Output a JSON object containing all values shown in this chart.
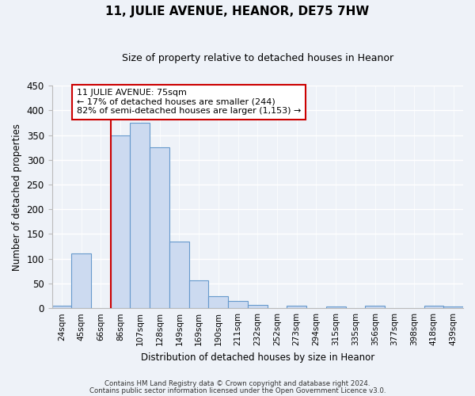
{
  "title": "11, JULIE AVENUE, HEANOR, DE75 7HW",
  "subtitle": "Size of property relative to detached houses in Heanor",
  "xlabel": "Distribution of detached houses by size in Heanor",
  "ylabel": "Number of detached properties",
  "bar_labels": [
    "24sqm",
    "45sqm",
    "66sqm",
    "86sqm",
    "107sqm",
    "128sqm",
    "149sqm",
    "169sqm",
    "190sqm",
    "211sqm",
    "232sqm",
    "252sqm",
    "273sqm",
    "294sqm",
    "315sqm",
    "335sqm",
    "356sqm",
    "377sqm",
    "398sqm",
    "418sqm",
    "439sqm"
  ],
  "bar_values": [
    5,
    110,
    0,
    350,
    375,
    325,
    135,
    57,
    25,
    14,
    7,
    0,
    5,
    0,
    4,
    0,
    5,
    0,
    0,
    5,
    3
  ],
  "bar_color": "#ccdaf0",
  "bar_edge_color": "#6699cc",
  "ylim": [
    0,
    450
  ],
  "yticks": [
    0,
    50,
    100,
    150,
    200,
    250,
    300,
    350,
    400,
    450
  ],
  "property_line_color": "#cc0000",
  "annotation_title": "11 JULIE AVENUE: 75sqm",
  "annotation_line1": "← 17% of detached houses are smaller (244)",
  "annotation_line2": "82% of semi-detached houses are larger (1,153) →",
  "annotation_box_color": "#cc0000",
  "footer1": "Contains HM Land Registry data © Crown copyright and database right 2024.",
  "footer2": "Contains public sector information licensed under the Open Government Licence v3.0.",
  "background_color": "#eef2f8",
  "grid_color": "#ffffff"
}
